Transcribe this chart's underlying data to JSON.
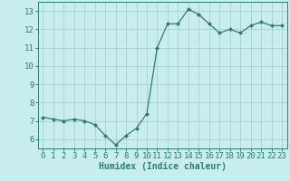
{
  "x": [
    0,
    1,
    2,
    3,
    4,
    5,
    6,
    7,
    8,
    9,
    10,
    11,
    12,
    13,
    14,
    15,
    16,
    17,
    18,
    19,
    20,
    21,
    22,
    23
  ],
  "y": [
    7.2,
    7.1,
    7.0,
    7.1,
    7.0,
    6.8,
    6.2,
    5.7,
    6.2,
    6.6,
    7.4,
    11.0,
    12.3,
    12.3,
    13.1,
    12.8,
    12.3,
    11.8,
    12.0,
    11.8,
    12.2,
    12.4,
    12.2,
    12.2
  ],
  "line_color": "#2e7d6e",
  "marker": "D",
  "marker_size": 2,
  "bg_color": "#c8eded",
  "grid_color": "#aacece",
  "xlabel": "Humidex (Indice chaleur)",
  "ylim": [
    5.5,
    13.5
  ],
  "xlim": [
    -0.5,
    23.5
  ],
  "yticks": [
    6,
    7,
    8,
    9,
    10,
    11,
    12,
    13
  ],
  "xticks": [
    0,
    1,
    2,
    3,
    4,
    5,
    6,
    7,
    8,
    9,
    10,
    11,
    12,
    13,
    14,
    15,
    16,
    17,
    18,
    19,
    20,
    21,
    22,
    23
  ],
  "tick_color": "#2e7d6e",
  "label_color": "#2e7d6e",
  "font_size": 6.5
}
